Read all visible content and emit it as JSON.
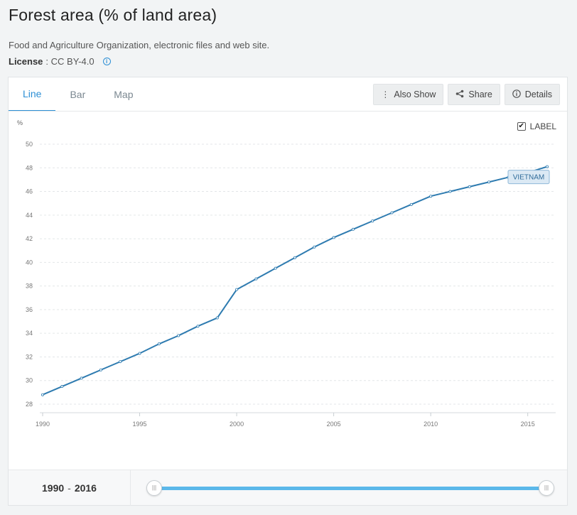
{
  "header": {
    "title": "Forest area (% of land area)",
    "source": "Food and Agriculture Organization, electronic files and web site.",
    "license_label": "License",
    "license_value": ": CC BY-4.0"
  },
  "tabs": [
    {
      "label": "Line",
      "active": true
    },
    {
      "label": "Bar",
      "active": false
    },
    {
      "label": "Map",
      "active": false
    }
  ],
  "actions": {
    "also_show": "Also Show",
    "share": "Share",
    "details": "Details"
  },
  "label_toggle": {
    "label": "LABEL",
    "checked": true
  },
  "range": {
    "start": "1990",
    "separator": "-",
    "end": "2016"
  },
  "colors": {
    "accent": "#2d8fd5",
    "line": "#2e7bb0",
    "slider": "#5bb8ea"
  },
  "chart_data": {
    "type": "line",
    "title": "",
    "ylabel": "%",
    "xlabel": "",
    "xlim": [
      1990,
      2016
    ],
    "ylim": [
      28,
      50
    ],
    "x_ticks": [
      1990,
      1995,
      2000,
      2005,
      2010,
      2015
    ],
    "y_ticks": [
      28,
      30,
      32,
      34,
      36,
      38,
      40,
      42,
      44,
      46,
      48,
      50
    ],
    "grid": true,
    "series": [
      {
        "name": "VIETNAM",
        "color": "#2e7bb0",
        "x": [
          1990,
          1991,
          1992,
          1993,
          1994,
          1995,
          1996,
          1997,
          1998,
          1999,
          2000,
          2001,
          2002,
          2003,
          2004,
          2005,
          2006,
          2007,
          2008,
          2009,
          2010,
          2011,
          2012,
          2013,
          2014,
          2015,
          2016
        ],
        "values": [
          28.8,
          29.5,
          30.2,
          30.9,
          31.6,
          32.3,
          33.1,
          33.8,
          34.6,
          35.3,
          37.7,
          38.6,
          39.5,
          40.4,
          41.3,
          42.1,
          42.8,
          43.5,
          44.2,
          44.9,
          45.6,
          46.0,
          46.4,
          46.8,
          47.2,
          47.6,
          48.1
        ]
      }
    ]
  }
}
